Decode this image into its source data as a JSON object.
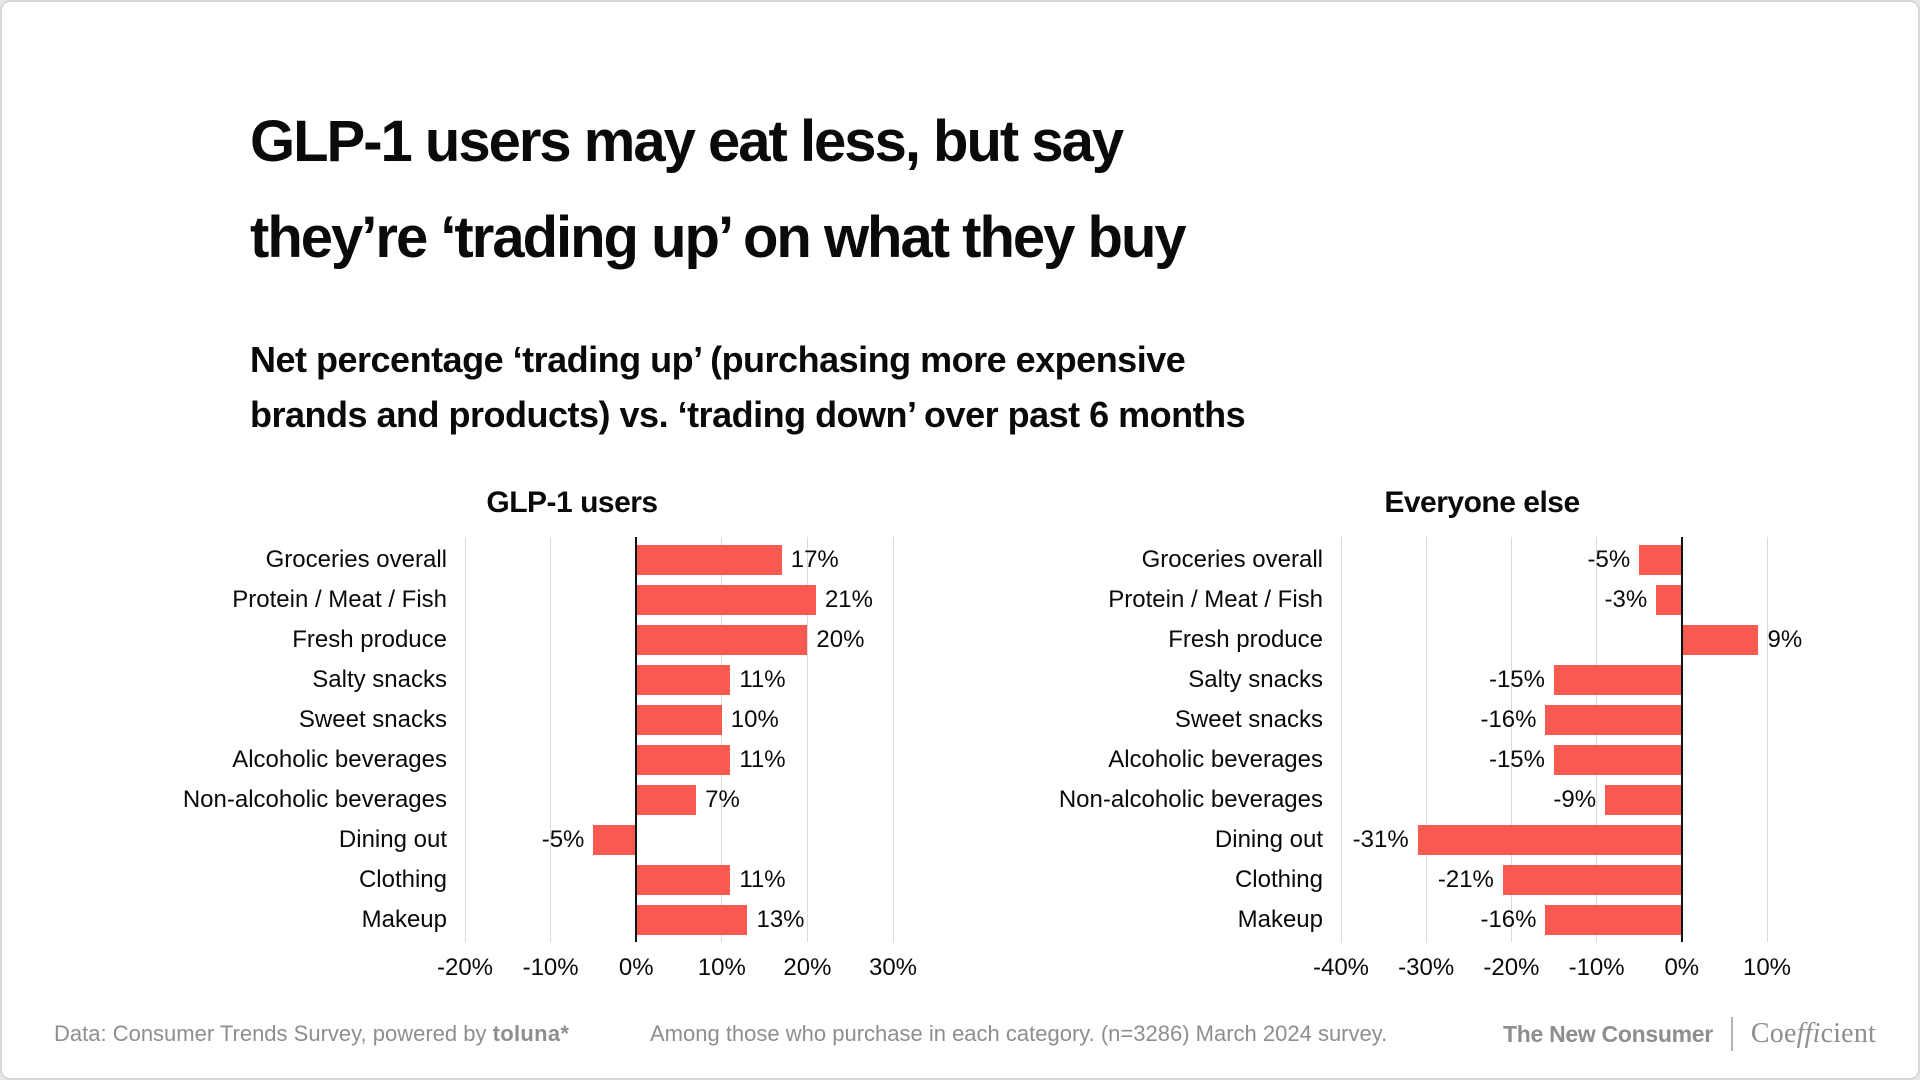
{
  "header": {
    "title_lines": [
      "GLP-1 users may eat less, but say",
      "they’re ‘trading up’ on what they buy"
    ],
    "subtitle_lines": [
      "Net percentage ‘trading up’ (purchasing more expensive",
      "brands and products) vs. ‘trading down’ over past 6 months"
    ]
  },
  "chart_data": [
    {
      "type": "bar",
      "orientation": "horizontal",
      "title": "GLP-1 users",
      "categories": [
        "Groceries overall",
        "Protein / Meat / Fish",
        "Fresh produce",
        "Salty snacks",
        "Sweet snacks",
        "Alcoholic beverages",
        "Non-alcoholic beverages",
        "Dining out",
        "Clothing",
        "Makeup"
      ],
      "values": [
        17,
        21,
        20,
        11,
        10,
        11,
        7,
        -5,
        11,
        13
      ],
      "value_label_format": "percent",
      "xlim": [
        -20,
        30
      ],
      "ticks": [
        -20,
        -10,
        0,
        10,
        20,
        30
      ],
      "grid": "vertical",
      "legend": "none"
    },
    {
      "type": "bar",
      "orientation": "horizontal",
      "title": "Everyone else",
      "categories": [
        "Groceries overall",
        "Protein / Meat / Fish",
        "Fresh produce",
        "Salty snacks",
        "Sweet snacks",
        "Alcoholic beverages",
        "Non-alcoholic beverages",
        "Dining out",
        "Clothing",
        "Makeup"
      ],
      "values": [
        -5,
        -3,
        9,
        -15,
        -16,
        -15,
        -9,
        -31,
        -21,
        -16
      ],
      "value_label_format": "percent",
      "xlim": [
        -40,
        10
      ],
      "ticks": [
        -40,
        -30,
        -20,
        -10,
        0,
        10
      ],
      "grid": "vertical",
      "legend": "none"
    }
  ],
  "footer": {
    "source_prefix": "Data: Consumer Trends Survey, powered by ",
    "source_logo": "toluna*",
    "note": "Among those who purchase in each category. (n=3286) March 2024 survey.",
    "brand_primary": "The New Consumer",
    "brand_secondary_parts": [
      "Coe",
      "ffi",
      "cient"
    ]
  },
  "colors": {
    "bar": "#F95A50",
    "grid_line": "#D9D9D9",
    "zero_line": "#111111",
    "footer_text": "#8E8E8E",
    "text": "#0A0A0A"
  }
}
